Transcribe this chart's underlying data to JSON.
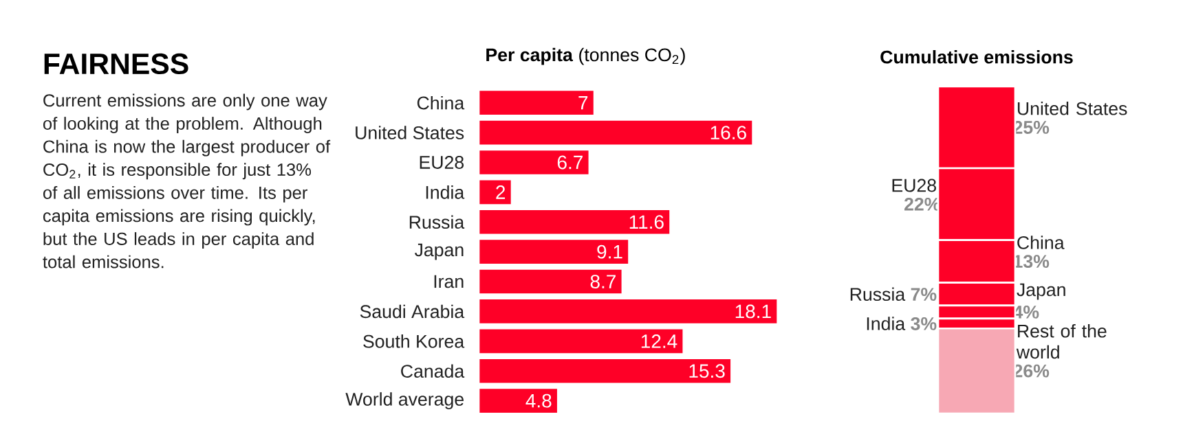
{
  "chart_data": [
    {
      "type": "other",
      "title": "FAIRNESS",
      "annotations": [
        "Current emissions are only one way of looking at the problem. Although China is now the largest producer of CO$_{2}$, it is responsible for just 13% of all emissions over time. Its per capita emissions are rising quickly, but the US leads in per capita and total emissions."
      ]
    },
    {
      "type": "bar",
      "orientation": "horizontal",
      "title": "**Per capita** (tonnes CO$_{2}$)",
      "categories": [
        "China",
        "United States",
        "EU28",
        "India",
        "Russia",
        "Japan",
        "Iran",
        "Saudi Arabia",
        "South Korea",
        "Canada",
        "World average"
      ],
      "values": [
        7,
        16.6,
        6.7,
        2,
        11.6,
        9.1,
        8.7,
        18.1,
        12.4,
        15.3,
        4.8
      ],
      "color": "#fe0027",
      "data_labels": true
    },
    {
      "type": "bar",
      "stacked": true,
      "title": "Cumulative emissions",
      "categories": [
        null
      ],
      "series": [
        {
          "name": "Rest of the world",
          "color": "#f7a8b4",
          "values": [
            26
          ],
          "value_labels": [
            "26%"
          ]
        },
        {
          "name": "India",
          "color": "#fe0027",
          "values": [
            3
          ],
          "value_labels": [
            "3%"
          ]
        },
        {
          "name": "Japan",
          "color": "#fe0027",
          "values": [
            4
          ],
          "value_labels": [
            "4%"
          ]
        },
        {
          "name": "Russia",
          "color": "#fe0027",
          "values": [
            7
          ],
          "value_labels": [
            "7%"
          ]
        },
        {
          "name": "China",
          "color": "#fe0027",
          "values": [
            13
          ],
          "value_labels": [
            "13%"
          ]
        },
        {
          "name": "EU28",
          "color": "#fe0027",
          "values": [
            22
          ],
          "value_labels": [
            "22%"
          ]
        },
        {
          "name": "United States",
          "color": "#fe0027",
          "values": [
            25
          ],
          "value_labels": [
            "25%"
          ]
        }
      ]
    }
  ]
}
